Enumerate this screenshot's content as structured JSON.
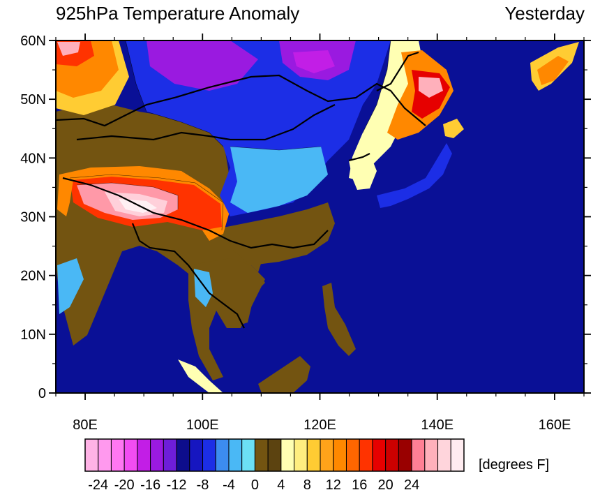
{
  "title": "925hPa Temperature Anomaly",
  "subtitle": "Yesterday",
  "map": {
    "lon_range": [
      75,
      165
    ],
    "lat_range": [
      0,
      60
    ],
    "lon_ticks": [
      {
        "value": 80,
        "label": "80E"
      },
      {
        "value": 100,
        "label": "100E"
      },
      {
        "value": 120,
        "label": "120E"
      },
      {
        "value": 140,
        "label": "140E"
      },
      {
        "value": 160,
        "label": "160E"
      }
    ],
    "lat_ticks": [
      {
        "value": 0,
        "label": "0"
      },
      {
        "value": 10,
        "label": "10N"
      },
      {
        "value": 20,
        "label": "20N"
      },
      {
        "value": 30,
        "label": "30N"
      },
      {
        "value": 40,
        "label": "40N"
      },
      {
        "value": 50,
        "label": "50N"
      },
      {
        "value": 60,
        "label": "60N"
      }
    ],
    "ocean_color": "#0a1096"
  },
  "colorbar": {
    "units": "[degrees F]",
    "colors": [
      "#ffb3e6",
      "#ff99ee",
      "#ff77f2",
      "#f24df2",
      "#c21ee6",
      "#9a1ae0",
      "#6e1ed9",
      "#0d0d8c",
      "#1616c0",
      "#1c2ee6",
      "#3c8cf0",
      "#4ab8f5",
      "#6ce0f5",
      "#735411",
      "#5c4310",
      "#ffffb3",
      "#ffee80",
      "#ffcc33",
      "#ffa31a",
      "#ff8800",
      "#ff6600",
      "#ff3300",
      "#e60000",
      "#cc0000",
      "#990000",
      "#ff8095",
      "#ffb0bb",
      "#ffd5dc",
      "#ffecf0"
    ],
    "labels": [
      "-24",
      "-20",
      "-16",
      "-12",
      "-8",
      "-4",
      "0",
      "4",
      "8",
      "12",
      "16",
      "20",
      "24"
    ]
  }
}
